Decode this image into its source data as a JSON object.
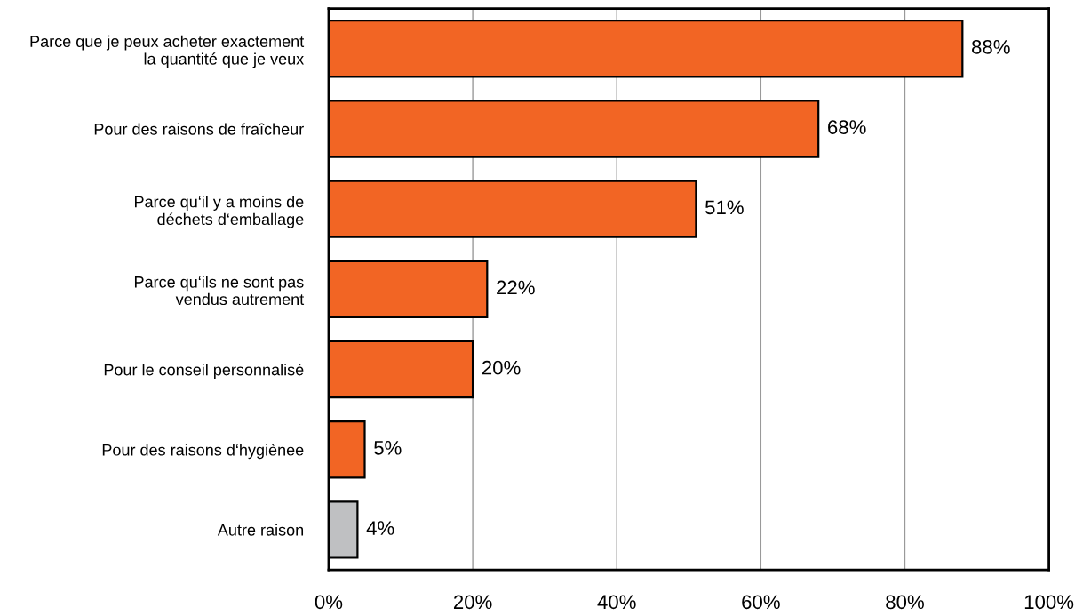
{
  "chart_data": {
    "type": "bar",
    "orientation": "horizontal",
    "categories": [
      "Parce que je peux acheter exactement\nla quantité que je veux",
      "Pour des raisons de fraîcheur",
      "Parce qu‘il y a moins de\ndéchets d‘emballage",
      "Parce qu‘ils ne sont pas\nvendus autrement",
      "Pour le conseil personnalisé",
      "Pour des raisons d‘hygiènee",
      "Autre raison"
    ],
    "values": [
      88,
      68,
      51,
      22,
      20,
      5,
      4
    ],
    "colors": [
      "#f26524",
      "#f26524",
      "#f26524",
      "#f26524",
      "#f26524",
      "#f26524",
      "#bfc0c2"
    ],
    "value_labels": [
      "88%",
      "68%",
      "51%",
      "22%",
      "20%",
      "5%",
      "4%"
    ],
    "xlim": [
      0,
      100
    ],
    "xticks": [
      {
        "value": 0,
        "label": "0%"
      },
      {
        "value": 20,
        "label": "20%"
      },
      {
        "value": 40,
        "label": "40%"
      },
      {
        "value": 60,
        "label": "60%"
      },
      {
        "value": 80,
        "label": "80%"
      },
      {
        "value": 100,
        "label": "100%"
      }
    ],
    "grid": "x"
  }
}
